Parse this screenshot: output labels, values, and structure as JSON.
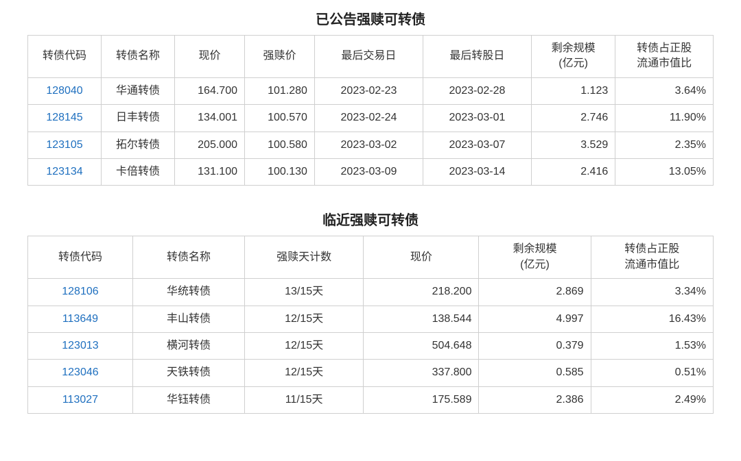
{
  "announced": {
    "title": "已公告强赎可转债",
    "columns": [
      "转债代码",
      "转债名称",
      "现价",
      "强赎价",
      "最后交易日",
      "最后转股日",
      "剩余规模\n(亿元)",
      "转债占正股\n流通市值比"
    ],
    "col_widths": [
      "105px",
      "105px",
      "100px",
      "100px",
      "155px",
      "155px",
      "120px",
      "140px"
    ],
    "rows": [
      {
        "code": "128040",
        "name": "华通转债",
        "price": "164.700",
        "redeem_price": "101.280",
        "last_trade": "2023-02-23",
        "last_conv": "2023-02-28",
        "remain": "1.123",
        "ratio": "3.64%"
      },
      {
        "code": "128145",
        "name": "日丰转债",
        "price": "134.001",
        "redeem_price": "100.570",
        "last_trade": "2023-02-24",
        "last_conv": "2023-03-01",
        "remain": "2.746",
        "ratio": "11.90%"
      },
      {
        "code": "123105",
        "name": "拓尔转债",
        "price": "205.000",
        "redeem_price": "100.580",
        "last_trade": "2023-03-02",
        "last_conv": "2023-03-07",
        "remain": "3.529",
        "ratio": "2.35%"
      },
      {
        "code": "123134",
        "name": "卡倍转债",
        "price": "131.100",
        "redeem_price": "100.130",
        "last_trade": "2023-03-09",
        "last_conv": "2023-03-14",
        "remain": "2.416",
        "ratio": "13.05%"
      }
    ]
  },
  "approaching": {
    "title": "临近强赎可转债",
    "columns": [
      "转债代码",
      "转债名称",
      "强赎天计数",
      "现价",
      "剩余规模\n(亿元)",
      "转债占正股\n流通市值比"
    ],
    "col_widths": [
      "150px",
      "160px",
      "170px",
      "165px",
      "160px",
      "175px"
    ],
    "rows": [
      {
        "code": "128106",
        "name": "华统转债",
        "days": "13/15天",
        "price": "218.200",
        "remain": "2.869",
        "ratio": "3.34%"
      },
      {
        "code": "113649",
        "name": "丰山转债",
        "days": "12/15天",
        "price": "138.544",
        "remain": "4.997",
        "ratio": "16.43%"
      },
      {
        "code": "123013",
        "name": "横河转债",
        "days": "12/15天",
        "price": "504.648",
        "remain": "0.379",
        "ratio": "1.53%"
      },
      {
        "code": "123046",
        "name": "天铁转债",
        "days": "12/15天",
        "price": "337.800",
        "remain": "0.585",
        "ratio": "0.51%"
      },
      {
        "code": "113027",
        "name": "华钰转债",
        "days": "11/15天",
        "price": "175.589",
        "remain": "2.386",
        "ratio": "2.49%"
      }
    ]
  },
  "colors": {
    "border": "#cfcfcf",
    "link": "#1e6fbf",
    "text": "#333333",
    "title": "#222222",
    "background": "#ffffff"
  }
}
